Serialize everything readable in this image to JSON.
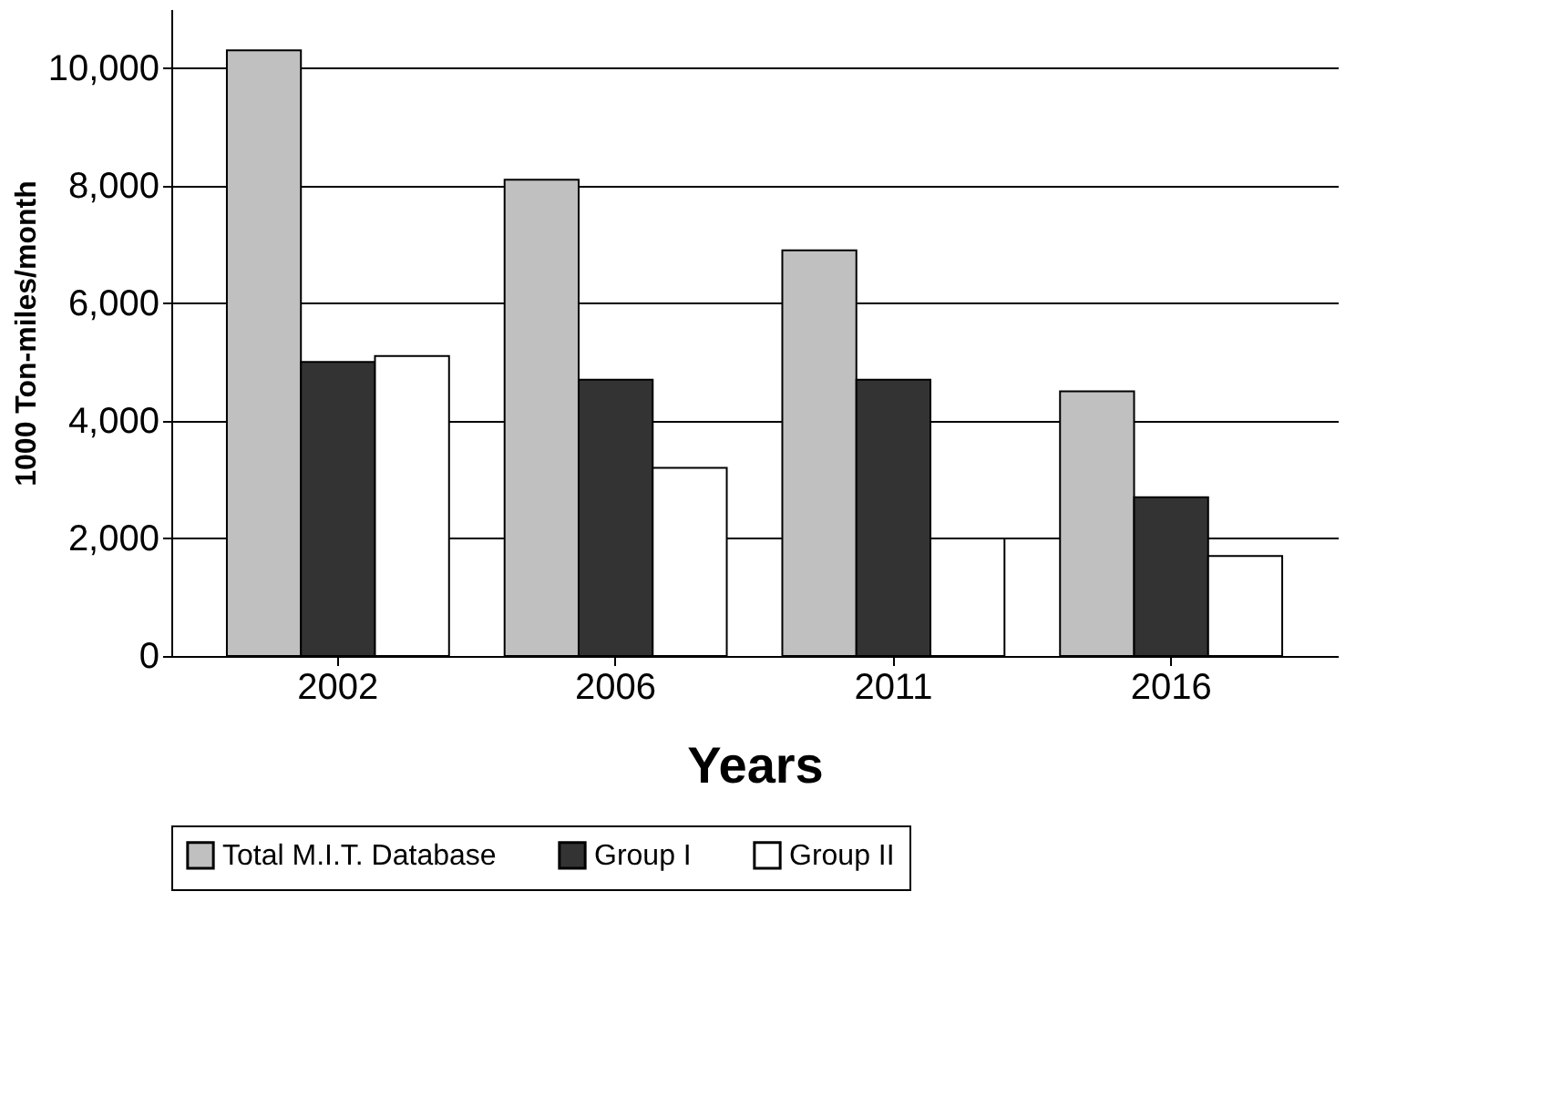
{
  "chart_data": {
    "type": "bar",
    "xlabel": "Years",
    "ylabel": "1000 Ton-miles/month",
    "categories": [
      "2002",
      "2006",
      "2011",
      "2016"
    ],
    "series": [
      {
        "name": "Total M.I.T. Database",
        "color": "#c0c0c0",
        "values": [
          10300,
          8100,
          6900,
          4500
        ]
      },
      {
        "name": "Group I",
        "color": "#333333",
        "values": [
          5000,
          4700,
          4700,
          2700
        ]
      },
      {
        "name": "Group II",
        "color": "#ffffff",
        "values": [
          5100,
          3200,
          2000,
          1700
        ]
      }
    ],
    "ylim": [
      0,
      11000
    ],
    "yticks": [
      {
        "value": 0,
        "label": "0"
      },
      {
        "value": 2000,
        "label": "2,000"
      },
      {
        "value": 4000,
        "label": "4,000"
      },
      {
        "value": 6000,
        "label": "6,000"
      },
      {
        "value": 8000,
        "label": "8,000"
      },
      {
        "value": 10000,
        "label": "10,000"
      }
    ],
    "grid": "y",
    "legend": "bottom"
  }
}
